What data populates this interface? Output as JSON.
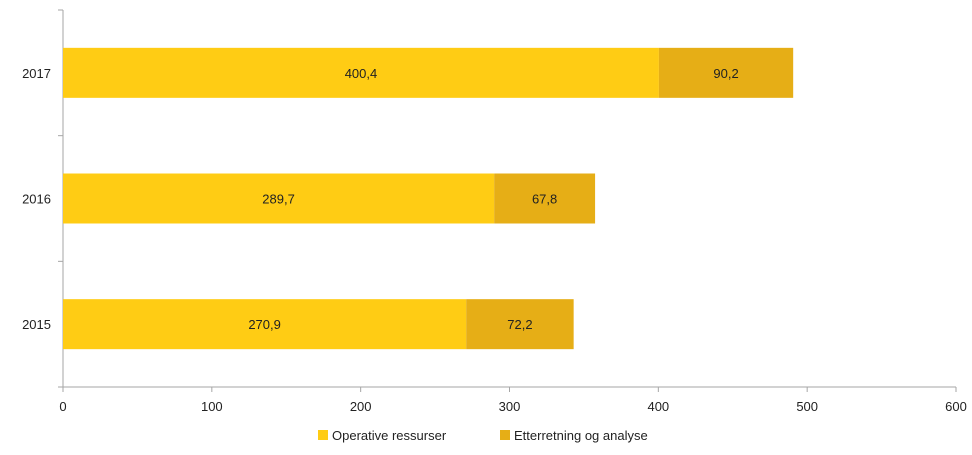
{
  "chart_data": {
    "type": "bar",
    "orientation": "horizontal",
    "stacked": true,
    "categories": [
      "2015",
      "2016",
      "2017"
    ],
    "series": [
      {
        "name": "Operative ressurser",
        "values": [
          270.9,
          289.7,
          400.4
        ],
        "labels": [
          "270,9",
          "289,7",
          "400,4"
        ],
        "color": "#FFCC14"
      },
      {
        "name": "Etterretning og analyse",
        "values": [
          72.2,
          67.8,
          90.2
        ],
        "labels": [
          "72,2",
          "67,8",
          "90,2"
        ],
        "color": "#E6AE16"
      }
    ],
    "xlim": [
      0,
      600
    ],
    "x_ticks": [
      0,
      100,
      200,
      300,
      400,
      500,
      600
    ],
    "x_tick_labels": [
      "0",
      "100",
      "200",
      "300",
      "400",
      "500",
      "600"
    ],
    "title": "",
    "xlabel": "",
    "ylabel": "",
    "grid": false,
    "legend": "bottom"
  }
}
